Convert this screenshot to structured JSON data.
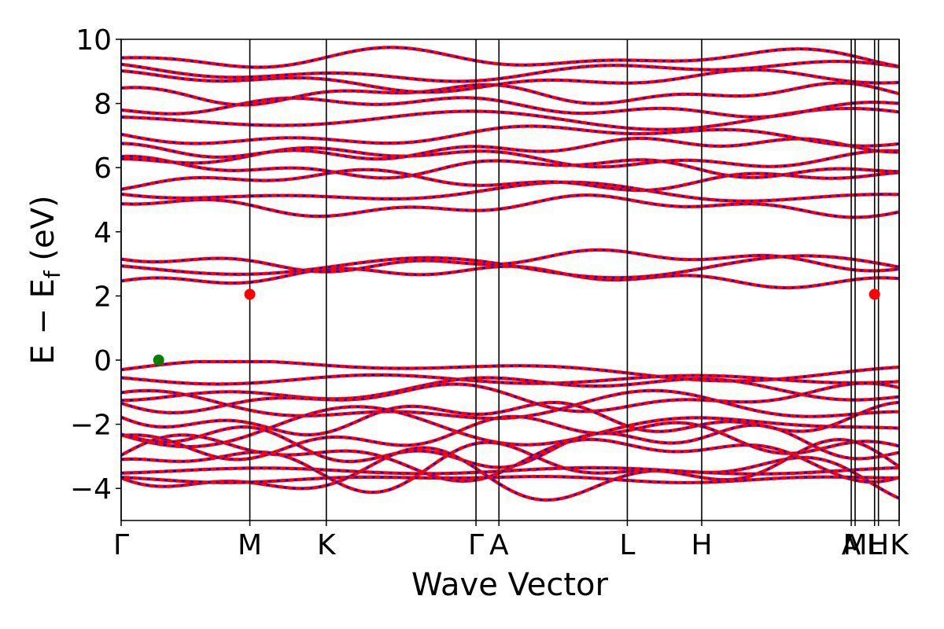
{
  "chart_data": {
    "type": "line",
    "xlabel": "Wave Vector",
    "ylabel": "E − E",
    "ylabel_sub": "f",
    "ylabel_unit": " (eV)",
    "ylim": [
      -5,
      10
    ],
    "yticks": [
      -4,
      -2,
      0,
      2,
      4,
      6,
      8,
      10
    ],
    "ytick_labels": [
      "−4",
      "−2",
      "0",
      "2",
      "4",
      "6",
      "8",
      "10"
    ],
    "xlim": [
      0,
      1
    ],
    "kpath": [
      {
        "label": "Γ",
        "x": 0.0
      },
      {
        "label": "M",
        "x": 0.1654
      },
      {
        "label": "K",
        "x": 0.2637
      },
      {
        "label": "Γ",
        "x": 0.4561
      },
      {
        "label": "A",
        "x": 0.4856
      },
      {
        "label": "L",
        "x": 0.6506
      },
      {
        "label": "H",
        "x": 0.7462
      },
      {
        "label": "A",
        "x": 0.9384
      },
      {
        "label": "M",
        "x": 0.9434
      },
      {
        "label": "L",
        "x": 0.9684
      },
      {
        "label": "H",
        "x": 0.9734
      },
      {
        "label": "K",
        "x": 1.0
      }
    ],
    "series_colors": {
      "spin_up": "#ff0000",
      "spin_down": "#0000ff"
    },
    "valence_band_count": 12,
    "conduction_band_count": 16,
    "markers": [
      {
        "x": 0.0482,
        "y": 0.0,
        "color": "#008000"
      },
      {
        "x": 0.1654,
        "y": 2.05,
        "color": "#ff0000"
      },
      {
        "x": 0.9684,
        "y": 2.05,
        "color": "#ff0000"
      }
    ]
  }
}
